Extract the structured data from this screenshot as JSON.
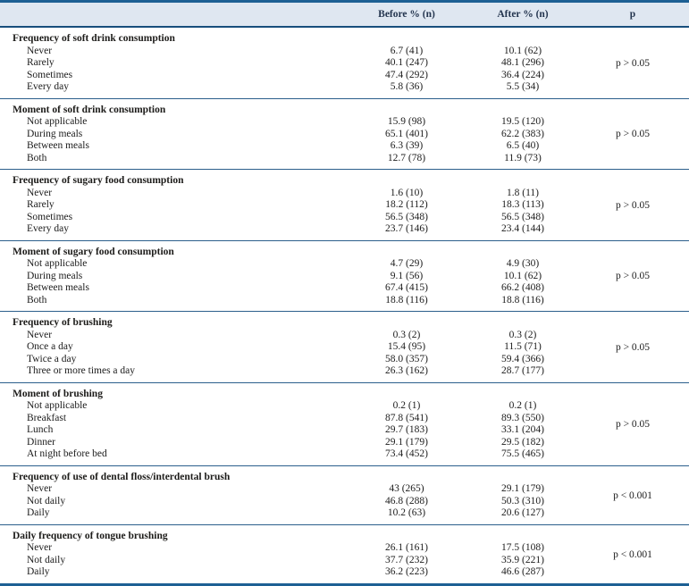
{
  "table": {
    "columns": {
      "label": "",
      "before": "Before % (n)",
      "after": "After % (n)",
      "p": "p"
    },
    "colors": {
      "accent_rule": "#1d6094",
      "header_rule": "#174e7c",
      "header_bg": "#dfe7f1",
      "header_text": "#24354f",
      "separator": "#2b5f8c",
      "body_text": "#1c1c1c"
    },
    "sections": [
      {
        "header": "Frequency of soft drink consumption",
        "p": "p > 0.05",
        "rows": [
          {
            "label": "Never",
            "before": "6.7 (41)",
            "after": "10.1 (62)"
          },
          {
            "label": "Rarely",
            "before": "40.1 (247)",
            "after": "48.1 (296)"
          },
          {
            "label": "Sometimes",
            "before": "47.4 (292)",
            "after": "36.4 (224)"
          },
          {
            "label": "Every day",
            "before": "5.8 (36)",
            "after": "5.5 (34)"
          }
        ]
      },
      {
        "header": "Moment of soft drink consumption",
        "p": "p > 0.05",
        "rows": [
          {
            "label": "Not applicable",
            "before": "15.9 (98)",
            "after": "19.5 (120)"
          },
          {
            "label": "During meals",
            "before": "65.1 (401)",
            "after": "62.2 (383)"
          },
          {
            "label": "Between meals",
            "before": "6.3 (39)",
            "after": "6.5 (40)"
          },
          {
            "label": "Both",
            "before": "12.7 (78)",
            "after": "11.9 (73)"
          }
        ]
      },
      {
        "header": "Frequency of sugary food consumption",
        "p": "p > 0.05",
        "rows": [
          {
            "label": "Never",
            "before": "1.6 (10)",
            "after": "1.8 (11)"
          },
          {
            "label": "Rarely",
            "before": "18.2 (112)",
            "after": "18.3 (113)"
          },
          {
            "label": "Sometimes",
            "before": "56.5 (348)",
            "after": "56.5 (348)"
          },
          {
            "label": "Every day",
            "before": "23.7 (146)",
            "after": "23.4 (144)"
          }
        ]
      },
      {
        "header": "Moment of sugary food consumption",
        "p": "p > 0.05",
        "rows": [
          {
            "label": "Not applicable",
            "before": "4.7 (29)",
            "after": "4.9 (30)"
          },
          {
            "label": "During meals",
            "before": "9.1 (56)",
            "after": "10.1 (62)"
          },
          {
            "label": "Between meals",
            "before": "67.4 (415)",
            "after": "66.2 (408)"
          },
          {
            "label": "Both",
            "before": "18.8 (116)",
            "after": "18.8 (116)"
          }
        ]
      },
      {
        "header": "Frequency of brushing",
        "p": "p > 0.05",
        "rows": [
          {
            "label": "Never",
            "before": "0.3 (2)",
            "after": "0.3 (2)"
          },
          {
            "label": "Once a day",
            "before": "15.4 (95)",
            "after": "11.5 (71)"
          },
          {
            "label": "Twice a day",
            "before": "58.0 (357)",
            "after": "59.4 (366)"
          },
          {
            "label": "Three or more times a day",
            "before": "26.3 (162)",
            "after": "28.7 (177)"
          }
        ]
      },
      {
        "header": "Moment of brushing",
        "p": "p > 0.05",
        "rows": [
          {
            "label": "Not applicable",
            "before": "0.2 (1)",
            "after": "0.2 (1)"
          },
          {
            "label": "Breakfast",
            "before": "87.8 (541)",
            "after": "89.3 (550)"
          },
          {
            "label": "Lunch",
            "before": "29.7 (183)",
            "after": "33.1 (204)"
          },
          {
            "label": "Dinner",
            "before": "29.1 (179)",
            "after": "29.5 (182)"
          },
          {
            "label": "At night before bed",
            "before": "73.4 (452)",
            "after": "75.5 (465)"
          }
        ]
      },
      {
        "header": "Frequency of use of dental floss/interdental brush",
        "p": "p < 0.001",
        "rows": [
          {
            "label": "Never",
            "before": "43 (265)",
            "after": "29.1 (179)"
          },
          {
            "label": "Not daily",
            "before": "46.8 (288)",
            "after": "50.3 (310)"
          },
          {
            "label": "Daily",
            "before": "10.2 (63)",
            "after": "20.6 (127)"
          }
        ]
      },
      {
        "header": "Daily frequency of tongue brushing",
        "p": "p < 0.001",
        "rows": [
          {
            "label": "Never",
            "before": "26.1 (161)",
            "after": "17.5 (108)"
          },
          {
            "label": "Not daily",
            "before": "37.7 (232)",
            "after": "35.9 (221)"
          },
          {
            "label": "Daily",
            "before": "36.2 (223)",
            "after": "46.6 (287)"
          }
        ]
      }
    ]
  }
}
